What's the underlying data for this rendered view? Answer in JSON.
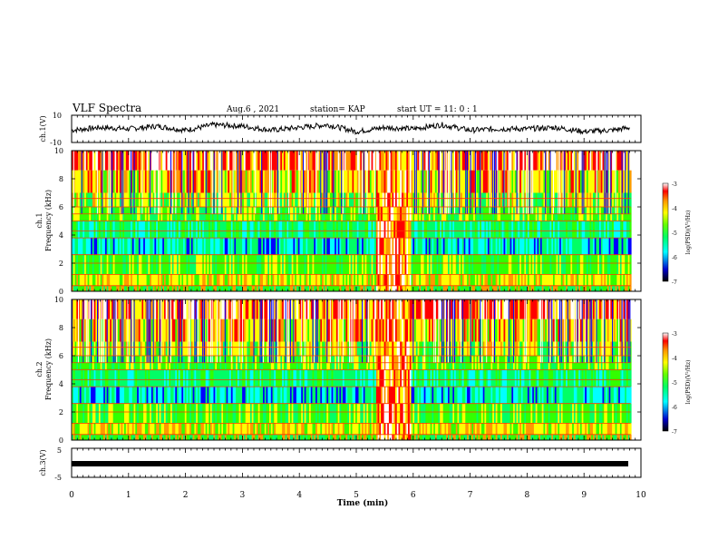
{
  "header": {
    "title": "VLF Spectra",
    "date": "Aug.6 , 2021",
    "station": "station= KAP",
    "start": "start UT = 11: 0 : 1"
  },
  "chart_data": {
    "type": "heatmap",
    "x": {
      "label": "Time (min)",
      "range": [
        0,
        10
      ],
      "ticks": [
        0,
        1,
        2,
        3,
        4,
        5,
        6,
        7,
        8,
        9,
        10
      ],
      "tick_labels": [
        "0",
        "1",
        "2",
        "3",
        "4",
        "5",
        "6",
        "7",
        "8",
        "9",
        "10"
      ]
    },
    "panels": [
      {
        "id": "ch1-waveform",
        "type": "line",
        "ylabel": "ch.1(V)",
        "ylim": [
          -10,
          10
        ],
        "yticks": [
          10,
          -10
        ],
        "ytick_labels": [
          "10",
          "-10"
        ],
        "x": [
          0,
          0.5,
          1.0,
          1.5,
          2.0,
          2.5,
          3.0,
          3.5,
          4.0,
          4.5,
          5.0,
          5.5,
          6.0,
          6.5,
          7.0,
          7.5,
          8.0,
          8.5,
          9.0,
          9.5,
          9.8
        ],
        "values": [
          -1,
          1,
          0,
          2,
          -1,
          3,
          2,
          -1,
          1,
          3,
          -2,
          1,
          0,
          3,
          -1,
          0,
          0,
          1,
          -2,
          -1,
          1
        ]
      },
      {
        "id": "ch1-spectrogram",
        "type": "heatmap",
        "ylabel_top": "ch.1",
        "ylabel": "Frequency (kHz)",
        "ylim": [
          0,
          10
        ],
        "yticks": [
          0,
          2,
          4,
          6,
          8,
          10
        ],
        "ytick_labels": [
          "0",
          "2",
          "4",
          "6",
          "8",
          "10"
        ],
        "colorbar": {
          "label": "log(PSD)(V²/Hz)",
          "range": [
            -7,
            -3
          ],
          "ticks": [
            -3,
            -4,
            -5,
            -6,
            -7
          ],
          "tick_labels": [
            "-3",
            "-4",
            "-5",
            "-6",
            "-7"
          ]
        }
      },
      {
        "id": "ch2-spectrogram",
        "type": "heatmap",
        "ylabel_top": "ch.2",
        "ylabel": "Frequency (kHz)",
        "ylim": [
          0,
          10
        ],
        "yticks": [
          0,
          2,
          4,
          6,
          8,
          10
        ],
        "ytick_labels": [
          "0",
          "2",
          "4",
          "6",
          "8",
          "10"
        ],
        "colorbar": {
          "label": "log(PSD)(V²/Hz)",
          "range": [
            -7,
            -3
          ],
          "ticks": [
            -3,
            -4,
            -5,
            -6,
            -7
          ],
          "tick_labels": [
            "-3",
            "-4",
            "-5",
            "-6",
            "-7"
          ]
        }
      },
      {
        "id": "ch3-waveform",
        "type": "line",
        "ylabel": "ch.3(V)",
        "ylim": [
          -5,
          5
        ],
        "yticks": [
          5,
          -5
        ],
        "ytick_labels": [
          "5",
          "-5"
        ],
        "x": [
          0,
          9.8
        ],
        "values": [
          0,
          0
        ]
      }
    ],
    "colormap": [
      "#000066",
      "#0000ff",
      "#00ffff",
      "#00ff66",
      "#33ff00",
      "#ffff00",
      "#ff9900",
      "#ff0000",
      "#ffffff"
    ]
  }
}
